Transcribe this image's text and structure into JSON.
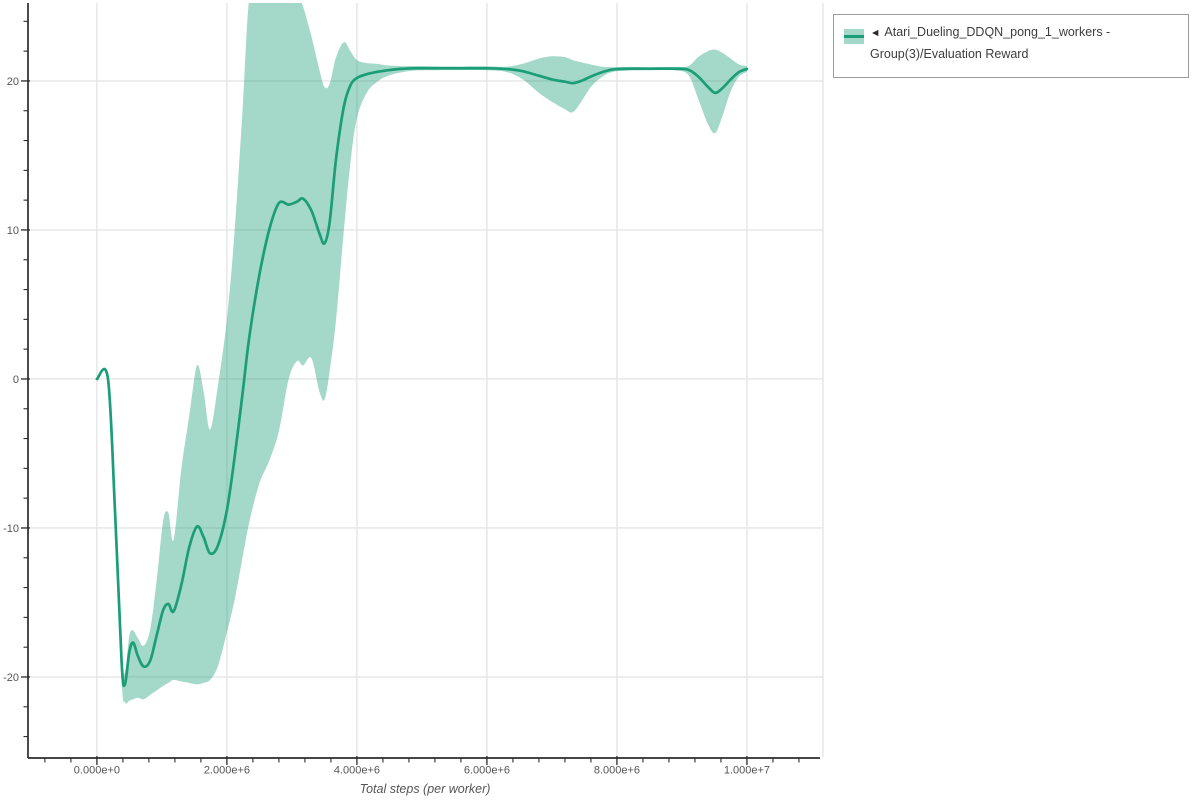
{
  "colors": {
    "grid": "#e5e5e5",
    "plot_right_border": "#e5e5e5",
    "axis": "#2b2b2b",
    "tick_label": "#555555",
    "axis_label": "#555555",
    "legend_border": "#9c9c9c",
    "legend_text": "#3d3d3d",
    "series_line": "#1b9e77",
    "series_band": "rgba(27,158,119,0.4)"
  },
  "chart_data": {
    "type": "line",
    "title": "",
    "xlabel": "Total steps (per worker)",
    "ylabel": "",
    "grid": true,
    "xlim": [
      -1060000,
      11170000
    ],
    "ylim": [
      -25.37,
      25.23
    ],
    "x_ticks": {
      "values": [
        0,
        2000000,
        4000000,
        6000000,
        8000000,
        10000000
      ],
      "labels": [
        "0.000e+0",
        "2.000e+6",
        "4.000e+6",
        "6.000e+6",
        "8.000e+6",
        "1.000e+7"
      ],
      "minor_step": 400000,
      "minor_range": [
        -800000,
        11100000
      ]
    },
    "y_ticks": {
      "values": [
        20,
        10,
        0,
        -10,
        -20
      ],
      "labels": [
        "20",
        "10",
        "0",
        "-10",
        "-20"
      ],
      "minor_step": 2,
      "minor_range": [
        -24,
        24
      ]
    },
    "legend": {
      "position": "outside-top-right",
      "collapse_marker": "◄",
      "entries": [
        {
          "label": "Atari_Dueling_DDQN_pong_1_workers - Group(3)/Evaluation Reward",
          "line_color": "#1b9e77",
          "band_color": "rgba(27,158,119,0.4)"
        }
      ]
    },
    "series": [
      {
        "name": "Atari_Dueling_DDQN_pong_1_workers - Group(3)/Evaluation Reward",
        "color": "#1b9e77",
        "band_color": "rgba(27,158,119,0.4)",
        "points_format": [
          "steps",
          "mean",
          "lower",
          "upper"
        ],
        "points": [
          [
            0,
            0,
            0,
            0
          ],
          [
            170000,
            0,
            0,
            0
          ],
          [
            280000,
            -9,
            -9.4,
            -8.6
          ],
          [
            380000,
            -19,
            -20.2,
            -18.2
          ],
          [
            430000,
            -20.5,
            -21.7,
            -19.7
          ],
          [
            500000,
            -18.3,
            -21.6,
            -17.2
          ],
          [
            560000,
            -17.7,
            -21.5,
            -16.9
          ],
          [
            630000,
            -18.6,
            -21.4,
            -17.4
          ],
          [
            720000,
            -19.3,
            -21.5,
            -17.9
          ],
          [
            820000,
            -18.9,
            -21.2,
            -16.8
          ],
          [
            920000,
            -17.2,
            -20.9,
            -13.5
          ],
          [
            1020000,
            -15.5,
            -20.6,
            -9.5
          ],
          [
            1100000,
            -15.1,
            -20.4,
            -9.0
          ],
          [
            1180000,
            -15.6,
            -20.2,
            -10.8
          ],
          [
            1300000,
            -13.8,
            -20.3,
            -6.0
          ],
          [
            1420000,
            -11.3,
            -20.4,
            -2.5
          ],
          [
            1540000,
            -9.9,
            -20.5,
            0.9
          ],
          [
            1640000,
            -10.6,
            -20.4,
            -0.8
          ],
          [
            1740000,
            -11.7,
            -20.2,
            -3.4
          ],
          [
            1860000,
            -11.2,
            -19.3,
            -0.5
          ],
          [
            2000000,
            -8.8,
            -17.0,
            4.0
          ],
          [
            2120000,
            -5.2,
            -14.8,
            10.0
          ],
          [
            2240000,
            -1.0,
            -12.0,
            18.0
          ],
          [
            2350000,
            3.0,
            -9.5,
            25.8
          ],
          [
            2500000,
            7.0,
            -7.0,
            25.8
          ],
          [
            2650000,
            10.0,
            -5.5,
            25.8
          ],
          [
            2800000,
            11.8,
            -3.5,
            25.8
          ],
          [
            2950000,
            11.7,
            0.0,
            25.8
          ],
          [
            3080000,
            11.9,
            1.2,
            25.8
          ],
          [
            3170000,
            12.1,
            0.9,
            25.0
          ],
          [
            3300000,
            11.3,
            1.4,
            23.0
          ],
          [
            3420000,
            9.8,
            -0.8,
            20.8
          ],
          [
            3500000,
            9.1,
            -1.4,
            19.6
          ],
          [
            3580000,
            10.5,
            0.5,
            19.8
          ],
          [
            3680000,
            14.8,
            4.0,
            21.6
          ],
          [
            3800000,
            18.3,
            10.0,
            22.6
          ],
          [
            3900000,
            19.7,
            14.5,
            22.0
          ],
          [
            4000000,
            20.2,
            17.5,
            21.4
          ],
          [
            4150000,
            20.45,
            19.2,
            21.2
          ],
          [
            4300000,
            20.6,
            19.9,
            21.15
          ],
          [
            4450000,
            20.7,
            20.3,
            21.05
          ],
          [
            4650000,
            20.8,
            20.55,
            21.0
          ],
          [
            4900000,
            20.85,
            20.7,
            21.0
          ],
          [
            5200000,
            20.85,
            20.72,
            20.98
          ],
          [
            5600000,
            20.85,
            20.73,
            20.97
          ],
          [
            6000000,
            20.85,
            20.72,
            20.98
          ],
          [
            6300000,
            20.8,
            20.6,
            20.95
          ],
          [
            6550000,
            20.65,
            20.1,
            21.15
          ],
          [
            6800000,
            20.35,
            19.2,
            21.5
          ],
          [
            7000000,
            20.1,
            18.6,
            21.65
          ],
          [
            7200000,
            19.95,
            18.1,
            21.6
          ],
          [
            7320000,
            19.85,
            17.9,
            21.4
          ],
          [
            7450000,
            20.0,
            18.6,
            21.25
          ],
          [
            7600000,
            20.3,
            19.6,
            21.1
          ],
          [
            7780000,
            20.6,
            20.3,
            20.95
          ],
          [
            7950000,
            20.78,
            20.62,
            20.92
          ],
          [
            8200000,
            20.82,
            20.7,
            20.94
          ],
          [
            8550000,
            20.82,
            20.72,
            20.92
          ],
          [
            8900000,
            20.82,
            20.7,
            20.94
          ],
          [
            9100000,
            20.75,
            20.4,
            21.0
          ],
          [
            9250000,
            20.3,
            18.8,
            21.6
          ],
          [
            9400000,
            19.6,
            17.1,
            22.0
          ],
          [
            9510000,
            19.2,
            16.5,
            22.1
          ],
          [
            9620000,
            19.5,
            17.6,
            21.9
          ],
          [
            9750000,
            20.1,
            19.3,
            21.5
          ],
          [
            9880000,
            20.6,
            20.3,
            21.1
          ],
          [
            10000000,
            20.8,
            20.6,
            21.0
          ]
        ]
      }
    ]
  }
}
